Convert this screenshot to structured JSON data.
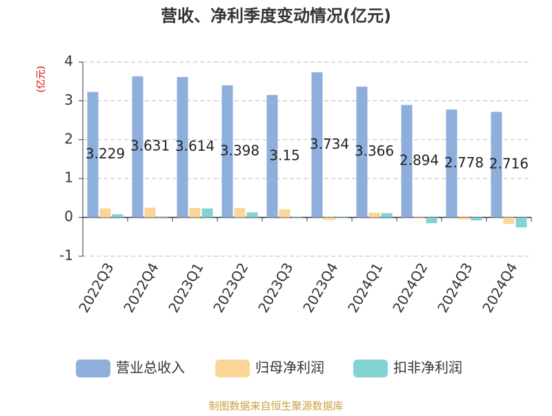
{
  "chart_data": {
    "type": "bar",
    "title": "营收、净利季度变动情况(亿元)",
    "y_label": "(亿元)",
    "categories": [
      "2022Q3",
      "2022Q4",
      "2023Q1",
      "2023Q2",
      "2023Q3",
      "2023Q4",
      "2024Q1",
      "2024Q2",
      "2024Q3",
      "2024Q4"
    ],
    "series": [
      {
        "name": "营业总收入",
        "color": "#8eafdc",
        "values": [
          3.229,
          3.631,
          3.614,
          3.398,
          3.15,
          3.734,
          3.366,
          2.894,
          2.778,
          2.716
        ],
        "show_labels": true
      },
      {
        "name": "归母净利润",
        "color": "#fcd697",
        "values": [
          0.23,
          0.25,
          0.24,
          0.24,
          0.21,
          -0.07,
          0.12,
          -0.03,
          -0.05,
          -0.17
        ]
      },
      {
        "name": "扣非净利润",
        "color": "#83d3d5",
        "values": [
          0.08,
          0.02,
          0.23,
          0.13,
          0.01,
          -0.02,
          0.11,
          -0.15,
          -0.08,
          -0.26
        ]
      }
    ],
    "ylim": [
      -1,
      4
    ],
    "yticks": [
      -1,
      0,
      1,
      2,
      3,
      4
    ],
    "grid": true,
    "source": "制图数据来自恒生聚源数据库"
  }
}
